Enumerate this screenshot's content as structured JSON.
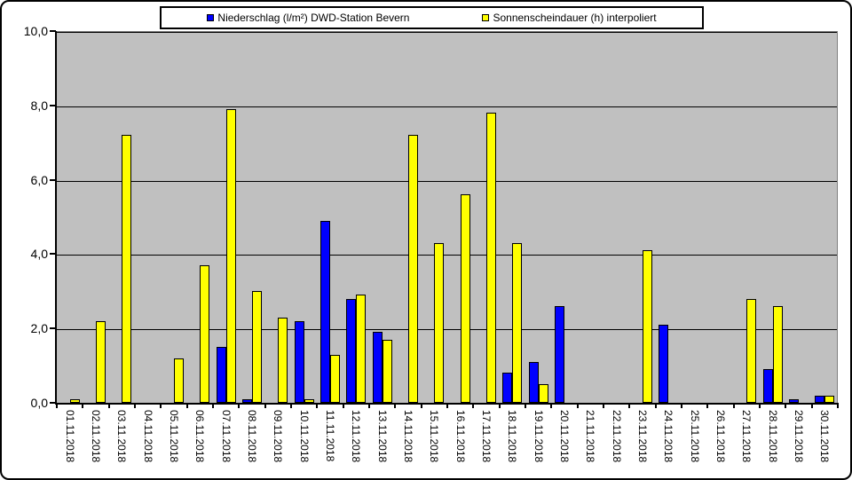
{
  "accent_colors": {
    "precipitation_blue": "#0000FF",
    "sunshine_yellow": "#FFFF00",
    "plot_background": "#C0C0C0",
    "gridline": "#000000",
    "plot_border": "#808080"
  },
  "legend": {
    "items": [
      {
        "label": "Niederschlag (l/m²) DWD-Station Bevern",
        "color": "#0000FF"
      },
      {
        "label": "Sonnenscheindauer (h) interpoliert",
        "color": "#FFFF00"
      }
    ]
  },
  "y_axis": {
    "min": 0,
    "max": 10,
    "step": 2,
    "tick_labels": [
      "0,0",
      "2,0",
      "4,0",
      "6,0",
      "8,0",
      "10,0"
    ]
  },
  "chart_data": {
    "type": "bar",
    "title": "",
    "xlabel": "",
    "ylabel": "",
    "ylim": [
      0,
      10
    ],
    "grid": true,
    "legend_position": "top",
    "plot_bg": "#C0C0C0",
    "categories": [
      "01.11.2018",
      "02.11.2018",
      "03.11.2018",
      "04.11.2018",
      "05.11.2018",
      "06.11.2018",
      "07.11.2018",
      "08.11.2018",
      "09.11.2018",
      "10.11.2018",
      "11.11.2018",
      "12.11.2018",
      "13.11.2018",
      "14.11.2018",
      "15.11.2018",
      "16.11.2018",
      "17.11.2018",
      "18.11.2018",
      "19.11.2018",
      "20.11.2018",
      "21.11.2018",
      "22.11.2018",
      "23.11.2018",
      "24.11.2018",
      "25.11.2018",
      "26.11.2018",
      "27.11.2018",
      "28.11.2018",
      "29.11.2018",
      "30.11.2018"
    ],
    "series": [
      {
        "name": "Niederschlag (l/m²) DWD-Station Bevern",
        "color": "#0000FF",
        "values": [
          0,
          0,
          0,
          0,
          0,
          0,
          1.5,
          0.1,
          0,
          2.2,
          4.9,
          2.8,
          1.9,
          0,
          0,
          0,
          0,
          0.8,
          1.1,
          2.6,
          0,
          0,
          0,
          2.1,
          0,
          0,
          0,
          0.9,
          0.1,
          0.2
        ]
      },
      {
        "name": "Sonnenscheindauer (h) interpoliert",
        "color": "#FFFF00",
        "values": [
          0.1,
          2.2,
          7.2,
          0,
          1.2,
          3.7,
          7.9,
          3.0,
          2.3,
          0.1,
          1.3,
          2.9,
          1.7,
          7.2,
          4.3,
          5.6,
          7.8,
          4.3,
          0.5,
          0,
          0,
          0,
          4.1,
          0,
          0,
          0,
          2.8,
          2.6,
          0,
          0.2
        ]
      }
    ]
  }
}
